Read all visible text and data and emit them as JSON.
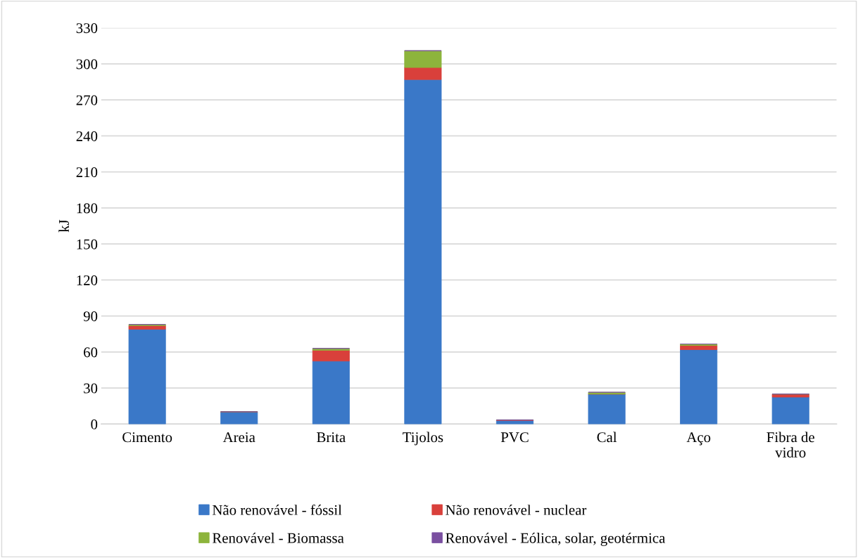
{
  "chart_data": {
    "type": "bar",
    "stacked": true,
    "ylabel": "kJ",
    "categories": [
      "Cimento",
      "Areia",
      "Brita",
      "Tijolos",
      "PVC",
      "Cal",
      "Aço",
      "Fibra de\nvidro"
    ],
    "series": [
      {
        "name": "Não renovável - fóssil",
        "color": "#3a78c8",
        "values": [
          79,
          10,
          52.5,
          287,
          3,
          25,
          62,
          22.5
        ]
      },
      {
        "name": "Não renovável - nuclear",
        "color": "#d9403b",
        "values": [
          3,
          0.3,
          9,
          10,
          0.5,
          0,
          3.5,
          2.5
        ]
      },
      {
        "name": "Renovável - Biomassa",
        "color": "#8db43c",
        "values": [
          1,
          0,
          1.5,
          14,
          0,
          1.5,
          1.2,
          0
        ]
      },
      {
        "name": "Renovável - Eólica, solar, geotérmica",
        "color": "#7a4fa0",
        "values": [
          0,
          0,
          0,
          0,
          0,
          0,
          0,
          0
        ]
      }
    ],
    "ylim": [
      0,
      330
    ],
    "yticks": [
      0,
      30,
      60,
      90,
      120,
      150,
      180,
      210,
      240,
      270,
      300,
      330
    ],
    "grid": "y",
    "legend": "bottom"
  }
}
